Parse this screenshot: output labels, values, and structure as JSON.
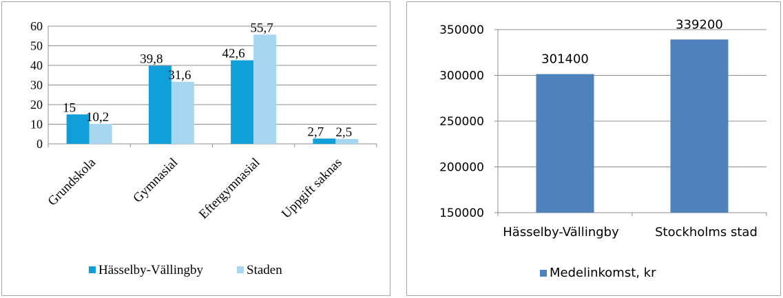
{
  "chart_data": [
    {
      "type": "bar",
      "categories": [
        "Grundskola",
        "Gymnasial",
        "Eftergymnasial",
        "Uppgift saknas"
      ],
      "series": [
        {
          "name": "Hässelby-Vällingby",
          "values": [
            15,
            39.8,
            42.6,
            2.7
          ],
          "labels": [
            "15",
            "39,8",
            "42,6",
            "2,7"
          ],
          "color": "#0f9ed5"
        },
        {
          "name": "Staden",
          "values": [
            10.2,
            31.6,
            55.7,
            2.5
          ],
          "labels": [
            "10,2",
            "31,6",
            "55,7",
            "2,5"
          ],
          "color": "#a7d6f1"
        }
      ],
      "ylim": [
        0,
        60
      ],
      "yticks": [
        "0",
        "10",
        "20",
        "30",
        "40",
        "50",
        "60"
      ],
      "grid": true,
      "legend": "bottom"
    },
    {
      "type": "bar",
      "categories": [
        "Hässelby-Vällingby",
        "Stockholms stad"
      ],
      "series": [
        {
          "name": "Medelinkomst, kr",
          "values": [
            301400,
            339200
          ],
          "labels": [
            "301400",
            "339200"
          ],
          "color": "#4f81bd"
        }
      ],
      "ylim": [
        150000,
        350000
      ],
      "yticks": [
        "150000",
        "200000",
        "250000",
        "300000",
        "350000"
      ],
      "grid": true,
      "legend": "bottom"
    }
  ]
}
